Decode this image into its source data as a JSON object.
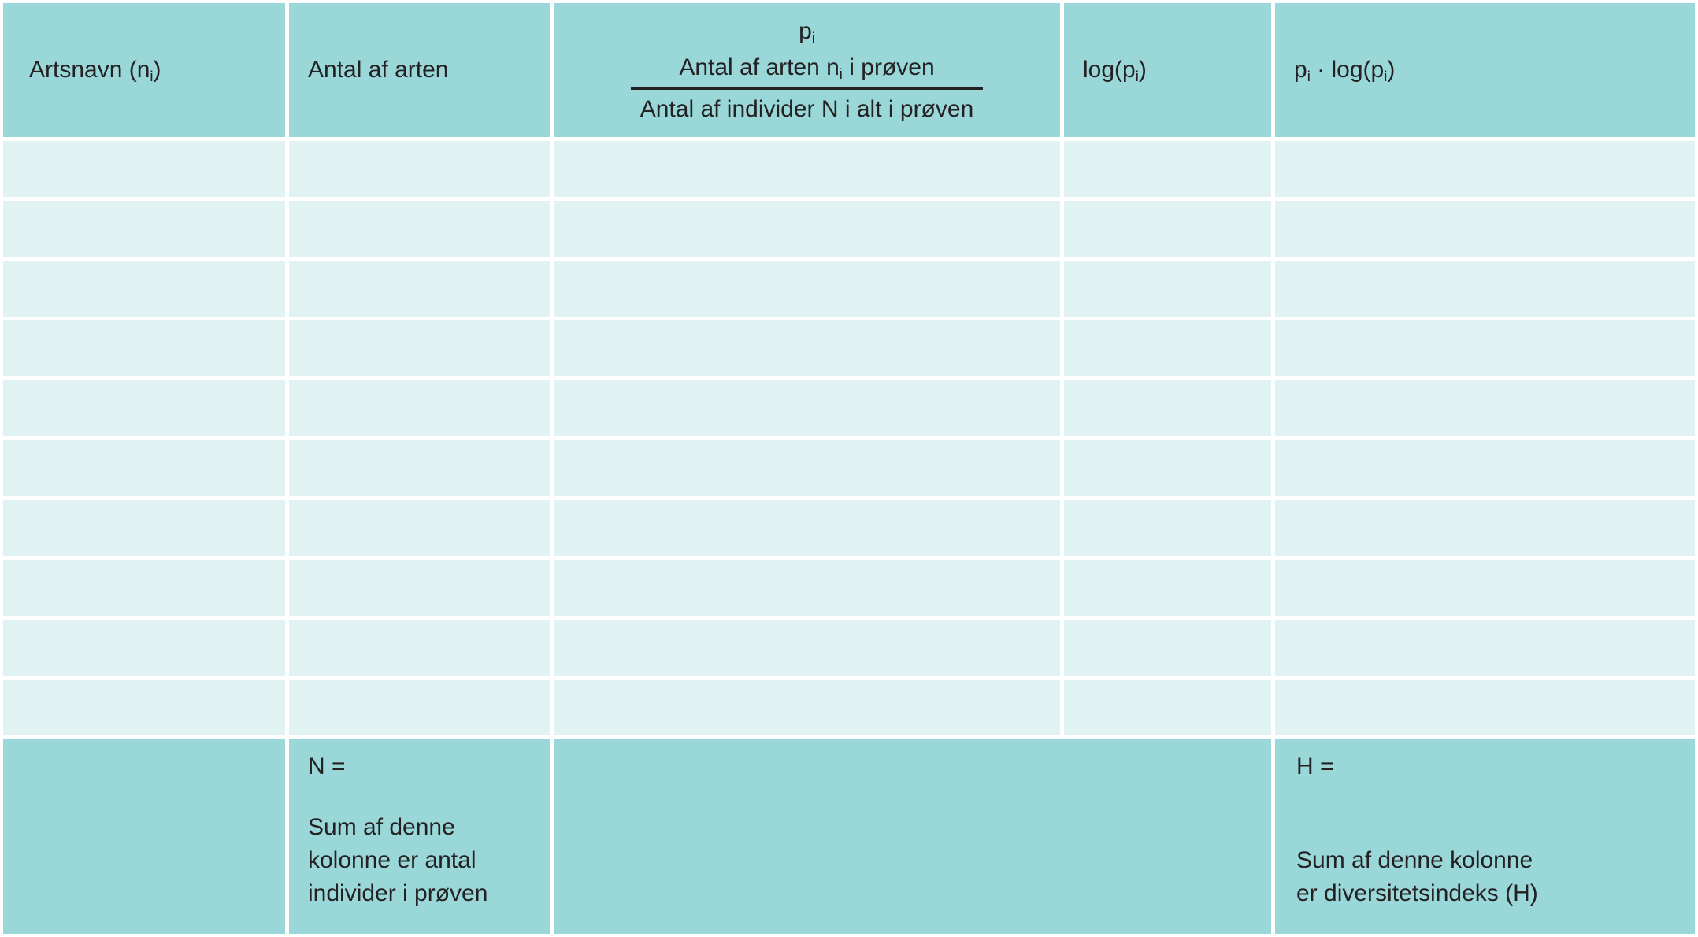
{
  "colors": {
    "header_footer_bg": "#9ad7d9",
    "row_bg": "#e1f2f3",
    "divider": "#ffffff",
    "text": "#242122"
  },
  "table": {
    "header": {
      "artsnavn": {
        "pre": "Artsnavn (n",
        "sub": "i",
        "post": ")"
      },
      "antal": "Antal af arten",
      "pi": {
        "symbol": {
          "pre": "p",
          "sub": "i"
        },
        "numerator": {
          "pre": "Antal af arten n",
          "sub": "i",
          "post": " i prøven"
        },
        "denominator": "Antal af individer N i alt i prøven"
      },
      "log": {
        "pre": "log(p",
        "sub": "i",
        "post": ")"
      },
      "pilog": {
        "pre": "p",
        "sub1": "i",
        "mid": " · log(p",
        "sub2": "i",
        "post": ")"
      }
    },
    "body": {
      "row_count": 10,
      "column_count": 5,
      "cell_value": ""
    },
    "footer": {
      "n_label": "N =",
      "n_note": "Sum af denne\nkolonne er antal\nindivider i prøven",
      "h_label": "H =",
      "h_note": "Sum af denne kolonne\ner diversitetsindeks (H)"
    }
  }
}
